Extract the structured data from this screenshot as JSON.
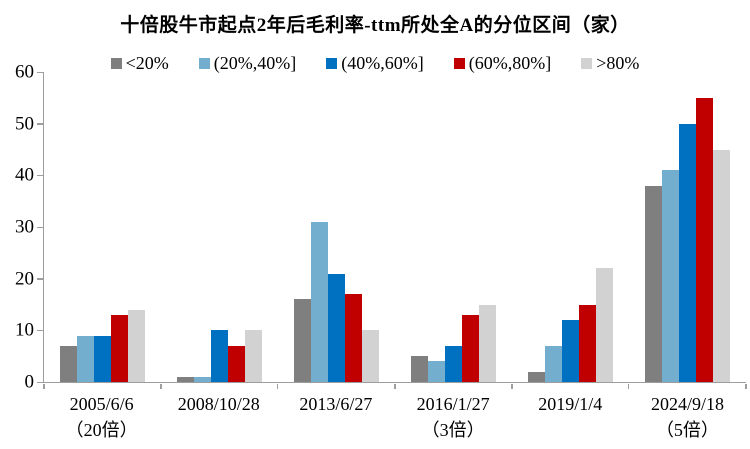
{
  "chart_data": {
    "type": "bar",
    "title": "十倍股牛市起点2年后毛利率-ttm所处全A的分位区间（家）",
    "categories": [
      "2005/6/6",
      "2008/10/28",
      "2013/6/27",
      "2016/1/27",
      "2019/1/4",
      "2024/9/18"
    ],
    "category_sublabels": [
      "（20倍）",
      "",
      "",
      "（3倍）",
      "",
      "（5倍）"
    ],
    "series": [
      {
        "name": "<20%",
        "color": "#7F7F7F",
        "values": [
          7,
          1,
          16,
          5,
          2,
          38
        ]
      },
      {
        "name": "(20%,40%]",
        "color": "#74AECE",
        "values": [
          9,
          1,
          31,
          4,
          7,
          41
        ]
      },
      {
        "name": "(40%,60%]",
        "color": "#0070C0",
        "values": [
          9,
          10,
          21,
          7,
          12,
          50
        ]
      },
      {
        "name": "(60%,80%]",
        "color": "#C00000",
        "values": [
          13,
          7,
          17,
          13,
          15,
          55
        ]
      },
      {
        "name": ">80%",
        "color": "#D2D2D2",
        "values": [
          14,
          10,
          10,
          15,
          22,
          45
        ]
      }
    ],
    "xlabel": "",
    "ylabel": "",
    "ylim": [
      0,
      60
    ],
    "yticks": [
      0,
      10,
      20,
      30,
      40,
      50,
      60
    ],
    "legend_position": "top",
    "grid": false,
    "axis_color": "#9d9d9d"
  }
}
